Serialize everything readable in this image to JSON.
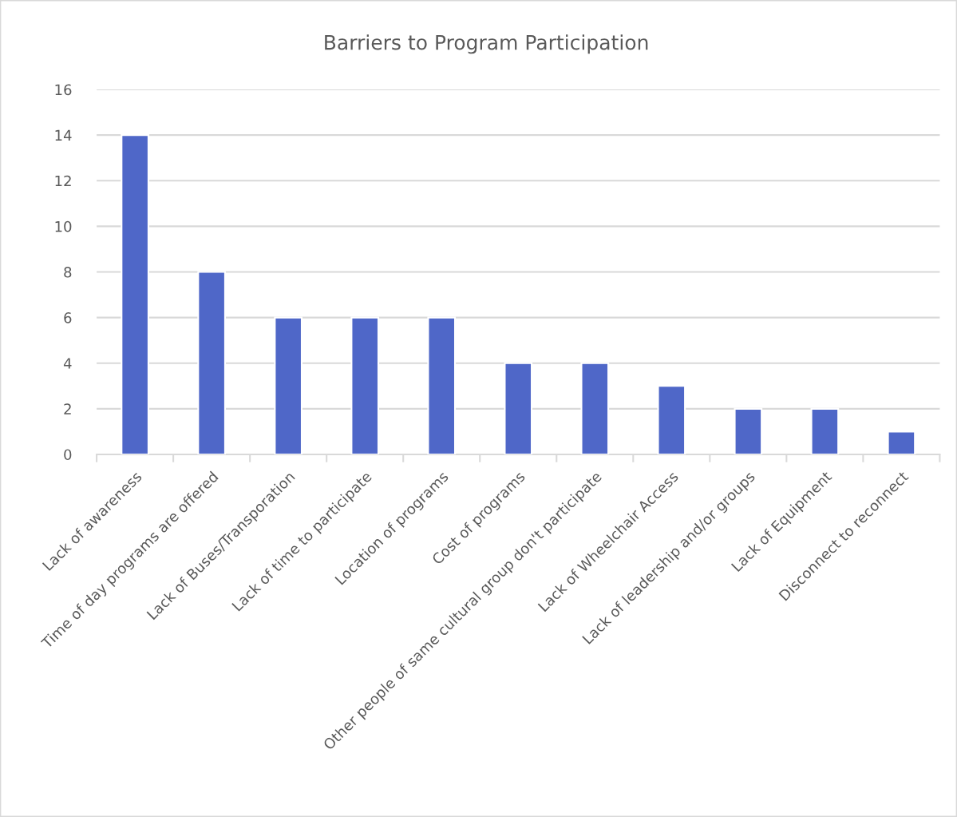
{
  "chart_data": {
    "type": "bar",
    "title": "Barriers to Program Participation",
    "categories": [
      "Lack of awareness",
      "Time of day programs are offered",
      "Lack of Buses/Transporation",
      "Lack of time to participate",
      "Location of programs",
      "Cost of programs",
      "Other people of same cultural group don't participate",
      "Lack of Wheelchair Access",
      "Lack of leadership and/or groups",
      "Lack of Equipment",
      "Disconnect to reconnect"
    ],
    "values": [
      14,
      8,
      6,
      6,
      6,
      4,
      4,
      3,
      2,
      2,
      1
    ],
    "color": "#4f67c8",
    "ylim": [
      0,
      16
    ],
    "yticks": [
      0,
      2,
      4,
      6,
      8,
      10,
      12,
      14,
      16
    ],
    "grid": "y"
  }
}
